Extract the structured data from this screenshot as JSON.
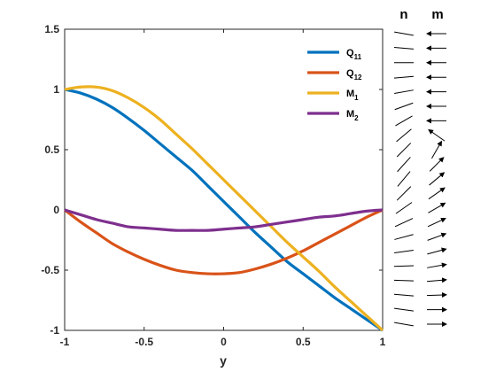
{
  "chart_data": {
    "type": "line",
    "title": "",
    "xlabel": "y",
    "ylabel": "",
    "xlim": [
      -1,
      1
    ],
    "ylim": [
      -1,
      1.5
    ],
    "xticks": [
      "-1",
      "-0.5",
      "0",
      "0.5",
      "1"
    ],
    "yticks": [
      "1.5",
      "1",
      "0.5",
      "0",
      "-0.5",
      "-1"
    ],
    "legend_position": "top-right",
    "grid": false,
    "x": [
      -1,
      -0.9,
      -0.8,
      -0.7,
      -0.6,
      -0.5,
      -0.4,
      -0.3,
      -0.2,
      -0.1,
      0,
      0.1,
      0.2,
      0.3,
      0.4,
      0.5,
      0.6,
      0.7,
      0.8,
      0.9,
      1
    ],
    "series": [
      {
        "name": "Q",
        "sub": "11",
        "color": "#0072BD",
        "values": [
          1.0,
          0.97,
          0.92,
          0.85,
          0.76,
          0.66,
          0.55,
          0.44,
          0.33,
          0.2,
          0.07,
          -0.06,
          -0.19,
          -0.31,
          -0.43,
          -0.53,
          -0.63,
          -0.73,
          -0.82,
          -0.91,
          -1.0
        ]
      },
      {
        "name": "Q",
        "sub": "12",
        "color": "#D95319",
        "values": [
          0.0,
          -0.1,
          -0.19,
          -0.28,
          -0.35,
          -0.41,
          -0.46,
          -0.5,
          -0.52,
          -0.53,
          -0.53,
          -0.52,
          -0.49,
          -0.45,
          -0.4,
          -0.34,
          -0.27,
          -0.2,
          -0.13,
          -0.06,
          0.0
        ]
      },
      {
        "name": "M",
        "sub": "1",
        "color": "#EDB120",
        "values": [
          1.0,
          1.02,
          1.02,
          0.99,
          0.93,
          0.85,
          0.75,
          0.63,
          0.51,
          0.38,
          0.25,
          0.12,
          -0.01,
          -0.14,
          -0.27,
          -0.39,
          -0.51,
          -0.64,
          -0.76,
          -0.88,
          -1.0
        ]
      },
      {
        "name": "M",
        "sub": "2",
        "color": "#7E2F8E",
        "values": [
          0.0,
          -0.04,
          -0.08,
          -0.11,
          -0.14,
          -0.15,
          -0.16,
          -0.17,
          -0.17,
          -0.17,
          -0.16,
          -0.15,
          -0.14,
          -0.12,
          -0.1,
          -0.08,
          -0.06,
          -0.05,
          -0.03,
          -0.01,
          0.0
        ]
      }
    ]
  },
  "field": {
    "n_label": "n",
    "m_label": "m",
    "rows": 21,
    "n_angles": [
      170,
      175,
      180,
      185,
      190,
      200,
      210,
      220,
      225,
      228,
      230,
      225,
      215,
      205,
      195,
      188,
      182,
      178,
      175,
      172,
      170
    ],
    "m_angles": [
      180,
      180,
      180,
      180,
      180,
      180,
      180,
      145,
      60,
      45,
      40,
      35,
      30,
      25,
      20,
      15,
      10,
      5,
      2,
      0,
      0
    ]
  }
}
